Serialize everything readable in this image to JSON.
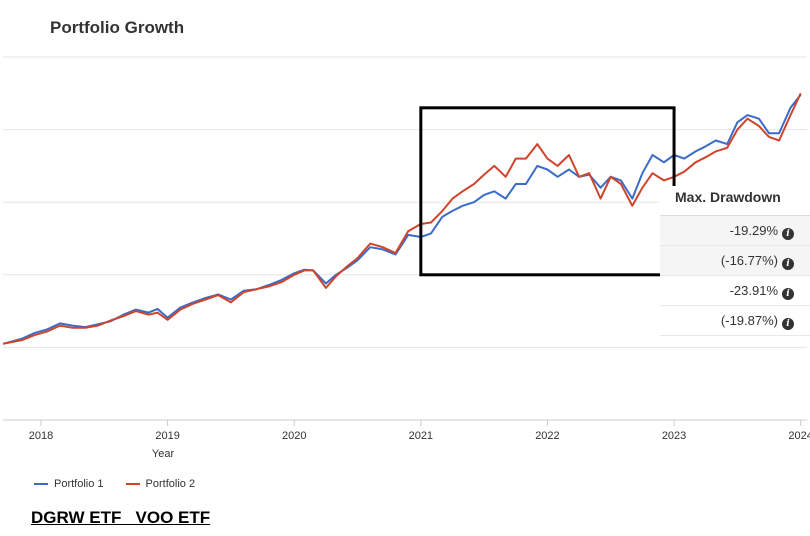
{
  "title": "Portfolio Growth",
  "caption": "DGRW ETF   VOO ETF",
  "drawdown": {
    "header": "Max. Drawdown",
    "rows": [
      {
        "value": "-19.29%",
        "icon": "info-icon"
      },
      {
        "value": "(-16.77%)",
        "icon": "info-icon"
      },
      {
        "value": "-23.91%",
        "icon": "info-icon"
      },
      {
        "value": "(-19.87%)",
        "icon": "info-icon"
      }
    ]
  },
  "chart_data": {
    "type": "line",
    "xlabel": "Year",
    "ylabel": "",
    "x_ticks": [
      "2018",
      "2019",
      "2020",
      "2021",
      "2022",
      "2023",
      "2024"
    ],
    "xlim": [
      2017.7,
      2024.05
    ],
    "ylim": [
      0,
      5
    ],
    "y_gridlines": [
      0,
      1,
      2,
      3,
      4,
      5
    ],
    "grid": true,
    "legend_position": "bottom-left",
    "highlight_box": {
      "x": [
        2021.0,
        2023.0
      ],
      "y": [
        2.0,
        4.3
      ],
      "color": "#000000"
    },
    "series": [
      {
        "name": "Portfolio 1",
        "color": "#3a6cc8",
        "x": [
          2017.7,
          2017.85,
          2017.95,
          2018.05,
          2018.15,
          2018.25,
          2018.35,
          2018.45,
          2018.55,
          2018.65,
          2018.75,
          2018.85,
          2018.92,
          2019.0,
          2019.1,
          2019.2,
          2019.3,
          2019.4,
          2019.5,
          2019.6,
          2019.7,
          2019.8,
          2019.9,
          2020.0,
          2020.08,
          2020.15,
          2020.25,
          2020.33,
          2020.42,
          2020.5,
          2020.6,
          2020.7,
          2020.8,
          2020.9,
          2021.0,
          2021.08,
          2021.17,
          2021.25,
          2021.33,
          2021.42,
          2021.5,
          2021.58,
          2021.67,
          2021.75,
          2021.83,
          2021.92,
          2022.0,
          2022.08,
          2022.17,
          2022.25,
          2022.33,
          2022.42,
          2022.5,
          2022.58,
          2022.67,
          2022.75,
          2022.83,
          2022.92,
          2023.0,
          2023.08,
          2023.17,
          2023.25,
          2023.33,
          2023.42,
          2023.5,
          2023.58,
          2023.67,
          2023.75,
          2023.83,
          2023.92,
          2024.0
        ],
        "y": [
          1.05,
          1.12,
          1.2,
          1.25,
          1.33,
          1.3,
          1.28,
          1.32,
          1.36,
          1.45,
          1.52,
          1.48,
          1.53,
          1.41,
          1.55,
          1.62,
          1.68,
          1.73,
          1.66,
          1.78,
          1.8,
          1.86,
          1.93,
          2.02,
          2.07,
          2.06,
          1.88,
          2.0,
          2.1,
          2.2,
          2.38,
          2.35,
          2.28,
          2.55,
          2.52,
          2.57,
          2.8,
          2.88,
          2.95,
          3.0,
          3.1,
          3.15,
          3.05,
          3.25,
          3.25,
          3.5,
          3.45,
          3.35,
          3.45,
          3.35,
          3.38,
          3.2,
          3.35,
          3.3,
          3.05,
          3.4,
          3.65,
          3.55,
          3.65,
          3.6,
          3.7,
          3.77,
          3.85,
          3.8,
          4.1,
          4.2,
          4.15,
          3.95,
          3.95,
          4.3,
          4.48
        ]
      },
      {
        "name": "Portfolio 2",
        "color": "#d0442c",
        "x": [
          2017.7,
          2017.85,
          2017.95,
          2018.05,
          2018.15,
          2018.25,
          2018.35,
          2018.45,
          2018.55,
          2018.65,
          2018.75,
          2018.85,
          2018.92,
          2019.0,
          2019.1,
          2019.2,
          2019.3,
          2019.4,
          2019.5,
          2019.6,
          2019.7,
          2019.8,
          2019.9,
          2020.0,
          2020.08,
          2020.15,
          2020.25,
          2020.33,
          2020.42,
          2020.5,
          2020.6,
          2020.7,
          2020.8,
          2020.9,
          2021.0,
          2021.08,
          2021.17,
          2021.25,
          2021.33,
          2021.42,
          2021.5,
          2021.58,
          2021.67,
          2021.75,
          2021.83,
          2021.92,
          2022.0,
          2022.08,
          2022.17,
          2022.25,
          2022.33,
          2022.42,
          2022.5,
          2022.58,
          2022.67,
          2022.75,
          2022.83,
          2022.92,
          2023.0,
          2023.08,
          2023.17,
          2023.25,
          2023.33,
          2023.42,
          2023.5,
          2023.58,
          2023.67,
          2023.75,
          2023.83,
          2023.92,
          2024.0
        ],
        "y": [
          1.05,
          1.1,
          1.17,
          1.22,
          1.3,
          1.27,
          1.27,
          1.3,
          1.37,
          1.43,
          1.5,
          1.45,
          1.48,
          1.38,
          1.52,
          1.6,
          1.66,
          1.72,
          1.62,
          1.76,
          1.8,
          1.84,
          1.9,
          2.0,
          2.06,
          2.06,
          1.82,
          1.98,
          2.12,
          2.23,
          2.43,
          2.38,
          2.3,
          2.6,
          2.7,
          2.72,
          2.88,
          3.05,
          3.15,
          3.25,
          3.38,
          3.5,
          3.35,
          3.6,
          3.6,
          3.8,
          3.6,
          3.5,
          3.65,
          3.35,
          3.4,
          3.05,
          3.35,
          3.25,
          2.95,
          3.2,
          3.4,
          3.3,
          3.35,
          3.42,
          3.55,
          3.62,
          3.7,
          3.75,
          4.0,
          4.15,
          4.05,
          3.9,
          3.85,
          4.2,
          4.5
        ]
      }
    ]
  }
}
